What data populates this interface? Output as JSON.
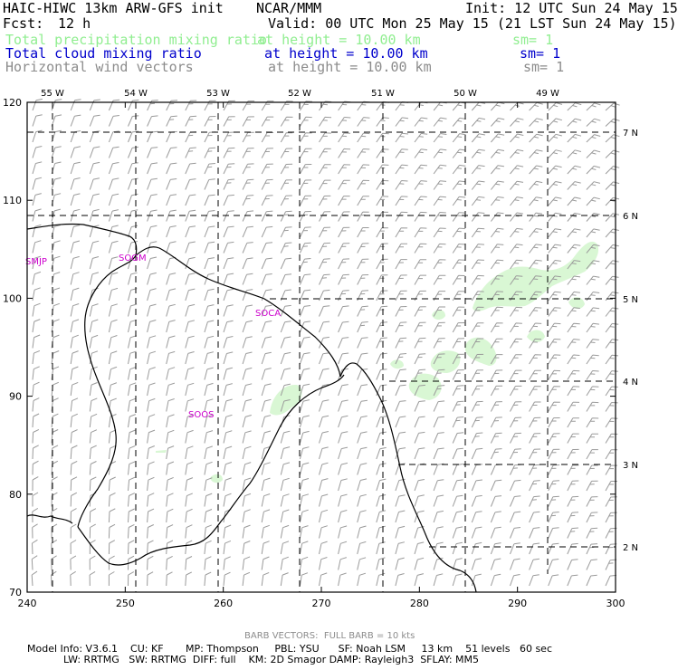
{
  "header": {
    "title": "HAIC-HIWC 13km ARW-GFS init    NCAR/MMM",
    "init": "Init: 12 UTC Sun 24 May 15",
    "fcst_label": "Fcst:",
    "fcst_value": "12 h",
    "valid": "Valid: 00 UTC Mon 25 May 15 (21 LST Sun 24 May 15)"
  },
  "fields": [
    {
      "name": "Total precipitation mixing ratio",
      "level": "at height = 10.00 km",
      "sm": "sm= 1",
      "color": "#90ee90"
    },
    {
      "name": "Total cloud mixing ratio",
      "level": "at height = 10.00 km",
      "sm": "sm= 1",
      "color": "#0000cc"
    },
    {
      "name": "Horizontal wind vectors",
      "level": "at height = 10.00 km",
      "sm": "sm= 1",
      "color": "#8c8c8c"
    }
  ],
  "map": {
    "x_ticks": [
      "240",
      "250",
      "260",
      "270",
      "280",
      "290",
      "300"
    ],
    "y_ticks": [
      "70",
      "80",
      "90",
      "100",
      "110",
      "120"
    ],
    "lon_labels": [
      "55 W",
      "54 W",
      "53 W",
      "52 W",
      "51 W",
      "50 W",
      "49 W"
    ],
    "lat_labels": [
      "7 N",
      "6 N",
      "5 N",
      "4 N",
      "3 N",
      "2 N"
    ],
    "stations": [
      "SMJP",
      "SOGM",
      "SOCA",
      "SOOS"
    ],
    "colors": {
      "coast": "#000000",
      "precip": "#d9f7d4",
      "station": "#cc00cc",
      "barb": "#9a9a9a",
      "grid": "#000000"
    }
  },
  "footer": {
    "barb_note": "BARB VECTORS:  FULL BARB = 10 kts",
    "model_line1": "Model Info: V3.6.1    CU: KF       MP: Thompson     PBL: YSU      SF: Noah LSM     13 km    51 levels   60 sec",
    "model_line2": "LW: RRTMG   SW: RRTMG  DIFF: full    KM: 2D Smagor DAMP: Rayleigh3  SFLAY: MM5"
  }
}
